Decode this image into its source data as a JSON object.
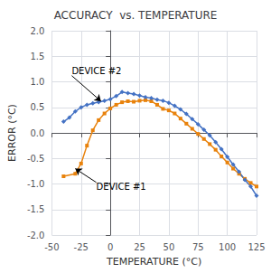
{
  "chart_data": {
    "type": "line",
    "title": "ACCURACY  vs. TEMPERATURE",
    "xlabel": "TEMPERATURE (°C)",
    "ylabel": "ERROR (°C)",
    "xlim": [
      -50,
      125
    ],
    "ylim": [
      -2.0,
      2.0
    ],
    "xticks": [
      -50,
      -25,
      0,
      25,
      50,
      75,
      100,
      125
    ],
    "yticks": [
      {
        "value": -2.0,
        "label": "-2.0"
      },
      -1.5,
      {
        "value": -1.0,
        "label": "-1.0"
      },
      -0.5,
      {
        "value": 0.0,
        "label": "0.0"
      },
      0.5,
      {
        "value": 1.0,
        "label": "1.0"
      },
      1.5,
      {
        "value": 2.0,
        "label": "2.0"
      }
    ],
    "grid": true,
    "series": [
      {
        "color": "#E8820C",
        "marker": "square",
        "x": [
          -40,
          -30,
          -25,
          -20,
          -15,
          -10,
          -5,
          0,
          5,
          10,
          15,
          20,
          25,
          30,
          35,
          40,
          45,
          50,
          55,
          60,
          65,
          70,
          75,
          80,
          85,
          90,
          95,
          100,
          105,
          110,
          115,
          120,
          125
        ],
        "values": [
          -0.85,
          -0.8,
          -0.6,
          -0.25,
          0.05,
          0.25,
          0.38,
          0.48,
          0.55,
          0.6,
          0.62,
          0.61,
          0.63,
          0.64,
          0.62,
          0.55,
          0.47,
          0.44,
          0.38,
          0.28,
          0.18,
          0.08,
          -0.02,
          -0.12,
          -0.22,
          -0.33,
          -0.46,
          -0.58,
          -0.7,
          -0.8,
          -0.9,
          -0.98,
          -1.05
        ]
      },
      {
        "color": "#4472C4",
        "marker": "diamond",
        "x": [
          -40,
          -35,
          -30,
          -25,
          -20,
          -15,
          -10,
          -5,
          0,
          5,
          10,
          15,
          20,
          25,
          30,
          35,
          40,
          45,
          50,
          55,
          60,
          65,
          70,
          75,
          80,
          85,
          90,
          95,
          100,
          105,
          110,
          115,
          120,
          125
        ],
        "values": [
          0.22,
          0.3,
          0.42,
          0.5,
          0.55,
          0.58,
          0.6,
          0.63,
          0.66,
          0.72,
          0.8,
          0.78,
          0.76,
          0.73,
          0.7,
          0.68,
          0.65,
          0.63,
          0.59,
          0.53,
          0.46,
          0.37,
          0.27,
          0.17,
          0.06,
          -0.05,
          -0.18,
          -0.32,
          -0.47,
          -0.62,
          -0.76,
          -0.92,
          -1.05,
          -1.23
        ]
      }
    ],
    "annotations": [
      {
        "text": "DEVICE #2",
        "x": -8,
        "y": 0.62,
        "text_x": -33,
        "text_y": 1.12,
        "align": "bottom"
      },
      {
        "text": "DEVICE #1",
        "x": -30,
        "y": -0.7,
        "text_x": -12,
        "text_y": -0.97,
        "align": "top"
      }
    ]
  }
}
